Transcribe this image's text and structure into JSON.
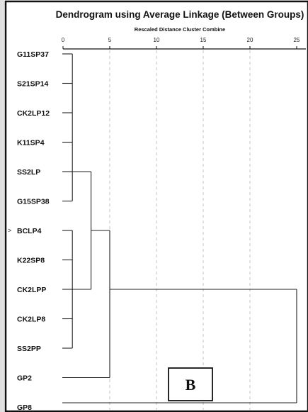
{
  "chart_data": {
    "type": "dendrogram",
    "title": "Dendrogram using Average Linkage (Between Groups)",
    "xlabel": "Rescaled Distance Cluster Combine",
    "xlim": [
      0,
      25
    ],
    "x_ticks": [
      0,
      5,
      10,
      15,
      20,
      25
    ],
    "x_tick_labels": [
      "0",
      "5",
      "10",
      "15",
      "20",
      "25"
    ],
    "grid": true,
    "leaves": [
      "G11SP37",
      "S21SP14",
      "CK2LP12",
      "K11SP4",
      "SS2LP",
      "G15SP38",
      "BCLP4",
      "K22SP8",
      "CK2LPP",
      "CK2LP8",
      "SS2PP",
      "GP2",
      "GP8"
    ],
    "merges": [
      {
        "nodes": [
          "G11SP37",
          "S21SP14",
          "CK2LP12",
          "K11SP4",
          "SS2LP",
          "G15SP38"
        ],
        "distance": 1
      },
      {
        "nodes": [
          "BCLP4",
          "K22SP8",
          "CK2LPP",
          "CK2LP8",
          "SS2PP"
        ],
        "distance": 1
      },
      {
        "nodes": [
          "SS2LP-cluster",
          "CK2LPP-cluster"
        ],
        "distance": 3
      },
      {
        "nodes": [
          "cluster-3",
          "GP2"
        ],
        "distance": 5
      },
      {
        "nodes": [
          "cluster-5",
          "GP8"
        ],
        "distance": 25
      }
    ],
    "marked_leaf": "BCLP4",
    "marker_symbol": ">"
  },
  "panel_label": "B"
}
